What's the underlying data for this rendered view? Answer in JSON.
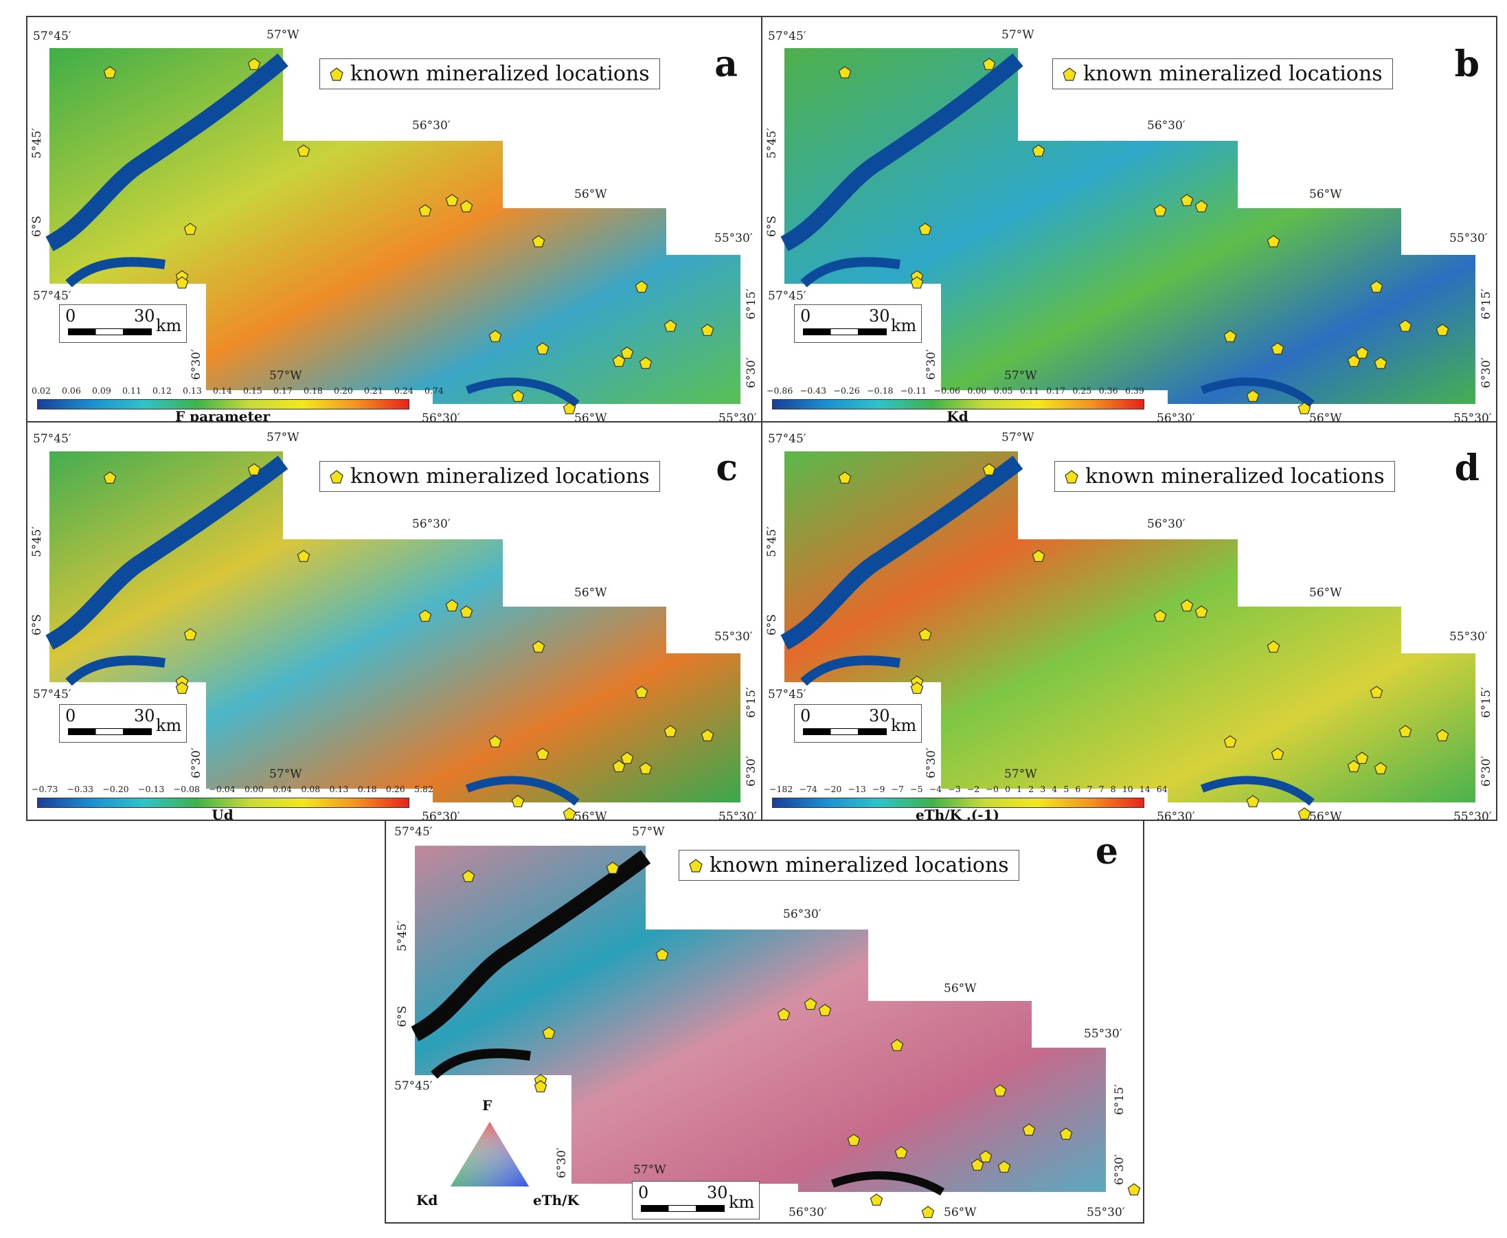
{
  "panels": {
    "a": {
      "label": "a",
      "legend": "known mineralized locations",
      "colorbar_title": "F parameter",
      "ticks": [
        "0.02",
        "0.06",
        "0.09",
        "0.11",
        "0.12",
        "0.13",
        "0.14",
        "0.15",
        "0.17",
        "0.18",
        "0.20",
        "0.21",
        "0.24",
        "0.74"
      ]
    },
    "b": {
      "label": "b",
      "legend": "known mineralized locations",
      "colorbar_title": "Kd",
      "ticks": [
        "−0.86",
        "−0.43",
        "−0.26",
        "−0.18",
        "−0.11",
        "−0.06",
        "0.00",
        "0.05",
        "0.11",
        "0.17",
        "0.25",
        "0.36",
        "6.39"
      ]
    },
    "c": {
      "label": "c",
      "legend": "known mineralized locations",
      "colorbar_title": "Ud",
      "ticks": [
        "−0.73",
        "−0.33",
        "−0.20",
        "−0.13",
        "−0.08",
        "−0.04",
        "0.00",
        "0.04",
        "0.08",
        "0.13",
        "0.18",
        "0.26",
        "5.82"
      ]
    },
    "d": {
      "label": "d",
      "legend": "known mineralized locations",
      "colorbar_title": "eTh/K .(-1)",
      "ticks": [
        "−182",
        "−74",
        "−20",
        "−13",
        "−9",
        "−7",
        "−5",
        "−4",
        "−3",
        "−2",
        "−0",
        "0",
        "1",
        "2",
        "3",
        "4",
        "5",
        "6",
        "7",
        "7",
        "8",
        "10",
        "14",
        "64"
      ]
    },
    "e": {
      "label": "e",
      "legend": "known mineralized locations",
      "ternary": {
        "top": "F",
        "left": "Kd",
        "right": "eTh/K"
      }
    }
  },
  "coords": {
    "w5745": "57°45′",
    "w57": "57°W",
    "w5630": "56°30′",
    "w56": "56°W",
    "w5530": "55°30′",
    "s545": "5°45′",
    "s6": "6°S",
    "s615": "6°15′",
    "s630": "6°30′"
  },
  "scalebar": {
    "start": "0",
    "end": "30",
    "unit": "km"
  },
  "colors": {
    "low": "#1a3f9a",
    "mid": "#3fb34a",
    "high": "#e8231b",
    "river": "#0c4a9c",
    "marker": "#f5e214"
  },
  "icons": {
    "marker": "pentagon-marker-icon"
  }
}
